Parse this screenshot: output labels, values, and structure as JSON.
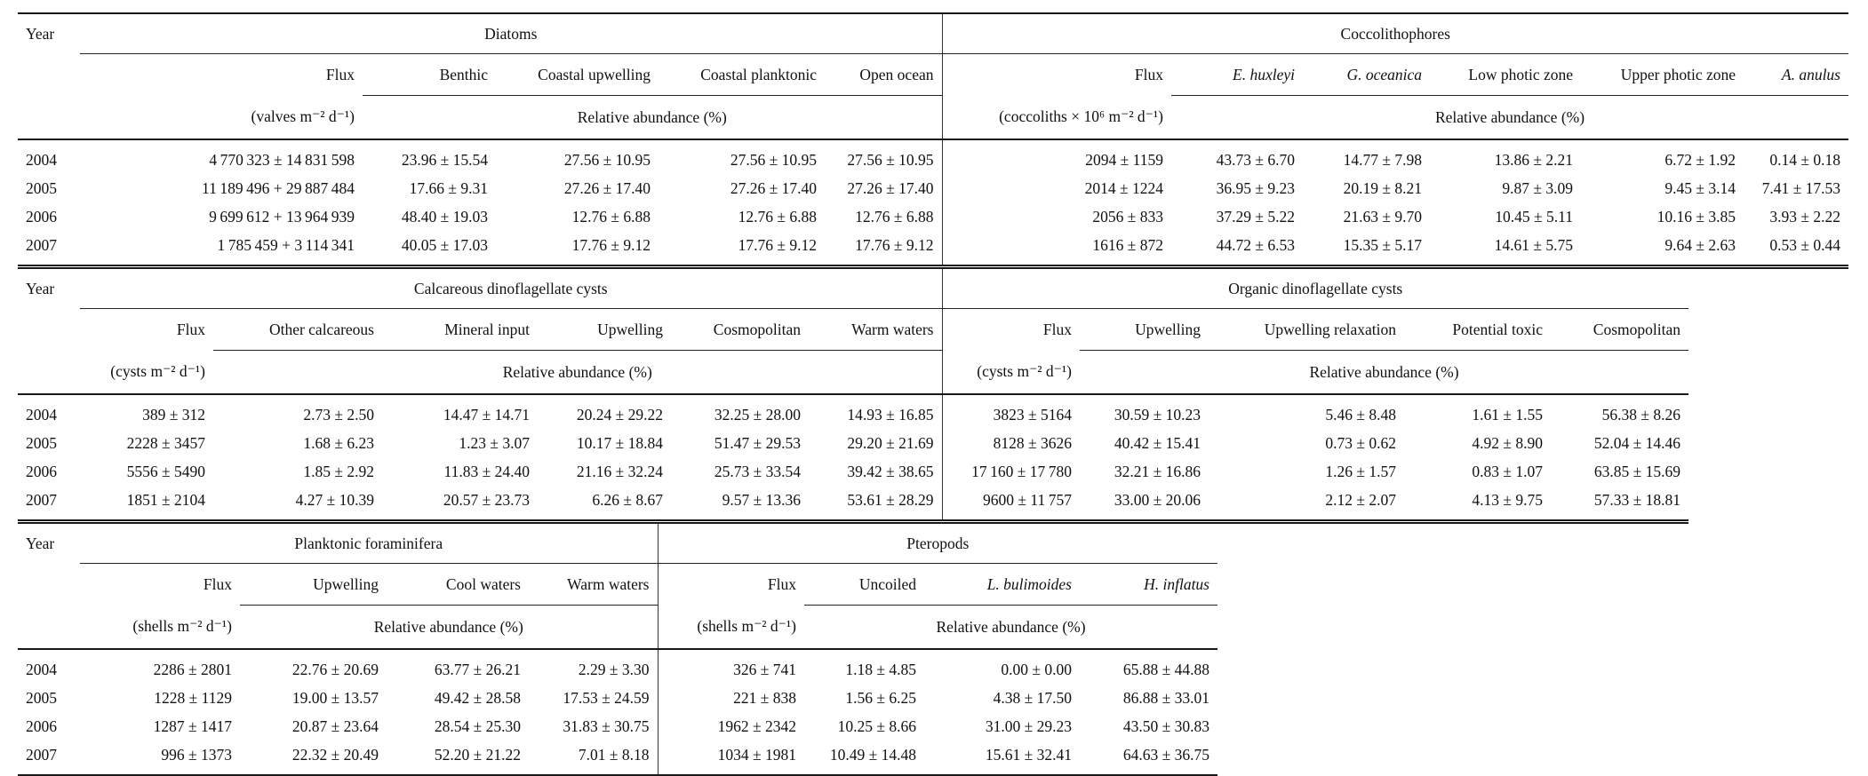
{
  "page": {
    "background": "#ffffff",
    "text_color": "#111111",
    "rule_color": "#181818"
  },
  "tables": [
    {
      "name": "diatoms-coccolithophores",
      "year_header": "Year",
      "sections": [
        {
          "title": "Diatoms",
          "flux_header": "Flux",
          "flux_unit": "(valves m⁻² d⁻¹)",
          "abundance_header": "Relative abundance (%)",
          "species": [
            "Benthic",
            "Coastal upwelling",
            "Coastal planktonic",
            "Open ocean"
          ],
          "species_italic": [
            false,
            false,
            false,
            false
          ]
        },
        {
          "title": "Coccolithophores",
          "flux_header": "Flux",
          "flux_unit": "(coccoliths × 10⁶ m⁻² d⁻¹)",
          "abundance_header": "Relative abundance (%)",
          "species": [
            "E. huxleyi",
            "G. oceanica",
            "Low photic zone",
            "Upper photic zone",
            "A. anulus"
          ],
          "species_italic": [
            true,
            true,
            false,
            false,
            true
          ]
        }
      ],
      "rows": [
        {
          "year": "2004",
          "cells": [
            "4 770 323 ± 14 831 598",
            "23.96 ± 15.54",
            "27.56 ± 10.95",
            "27.56 ± 10.95",
            "27.56 ± 10.95",
            "2094 ± 1159",
            "43.73 ± 6.70",
            "14.77 ± 7.98",
            "13.86 ± 2.21",
            "6.72 ± 1.92",
            "0.14 ± 0.18"
          ]
        },
        {
          "year": "2005",
          "cells": [
            "11 189 496 + 29 887 484",
            "17.66 ± 9.31",
            "27.26 ± 17.40",
            "27.26 ± 17.40",
            "27.26 ± 17.40",
            "2014 ± 1224",
            "36.95 ± 9.23",
            "20.19 ± 8.21",
            "9.87 ± 3.09",
            "9.45 ± 3.14",
            "7.41 ± 17.53"
          ]
        },
        {
          "year": "2006",
          "cells": [
            "9 699 612 + 13 964 939",
            "48.40 ± 19.03",
            "12.76 ± 6.88",
            "12.76 ± 6.88",
            "12.76 ± 6.88",
            "2056 ± 833",
            "37.29 ± 5.22",
            "21.63 ± 9.70",
            "10.45 ± 5.11",
            "10.16 ± 3.85",
            "3.93 ± 2.22"
          ]
        },
        {
          "year": "2007",
          "cells": [
            "1 785 459 + 3 114 341",
            "40.05 ± 17.03",
            "17.76 ± 9.12",
            "17.76 ± 9.12",
            "17.76 ± 9.12",
            "1616 ± 872",
            "44.72 ± 6.53",
            "15.35 ± 5.17",
            "14.61 ± 5.75",
            "9.64 ± 2.63",
            "0.53 ± 0.44"
          ]
        }
      ]
    },
    {
      "name": "dinoflagellate-cysts",
      "year_header": "Year",
      "sections": [
        {
          "title": "Calcareous dinoflagellate cysts",
          "flux_header": "Flux",
          "flux_unit": "(cysts m⁻² d⁻¹)",
          "abundance_header": "Relative abundance (%)",
          "species": [
            "Other calcareous",
            "Mineral input",
            "Upwelling",
            "Cosmopolitan",
            "Warm waters"
          ],
          "species_italic": [
            false,
            false,
            false,
            false,
            false
          ]
        },
        {
          "title": "Organic dinoflagellate cysts",
          "flux_header": "Flux",
          "flux_unit": "(cysts m⁻² d⁻¹)",
          "abundance_header": "Relative abundance (%)",
          "species": [
            "Upwelling",
            "Upwelling relaxation",
            "Potential toxic",
            "Cosmopolitan"
          ],
          "species_italic": [
            false,
            false,
            false,
            false
          ]
        }
      ],
      "rows": [
        {
          "year": "2004",
          "cells": [
            "389 ± 312",
            "2.73 ± 2.50",
            "14.47 ± 14.71",
            "20.24 ± 29.22",
            "32.25 ± 28.00",
            "14.93 ± 16.85",
            "3823 ± 5164",
            "30.59 ± 10.23",
            "5.46 ± 8.48",
            "1.61 ± 1.55",
            "56.38 ± 8.26"
          ]
        },
        {
          "year": "2005",
          "cells": [
            "2228 ± 3457",
            "1.68 ± 6.23",
            "1.23 ± 3.07",
            "10.17 ± 18.84",
            "51.47 ± 29.53",
            "29.20 ± 21.69",
            "8128 ± 3626",
            "40.42 ± 15.41",
            "0.73 ± 0.62",
            "4.92 ± 8.90",
            "52.04 ± 14.46"
          ]
        },
        {
          "year": "2006",
          "cells": [
            "5556 ± 5490",
            "1.85 ± 2.92",
            "11.83 ± 24.40",
            "21.16 ± 32.24",
            "25.73 ± 33.54",
            "39.42 ± 38.65",
            "17 160 ± 17 780",
            "32.21 ± 16.86",
            "1.26 ± 1.57",
            "0.83 ± 1.07",
            "63.85 ± 15.69"
          ]
        },
        {
          "year": "2007",
          "cells": [
            "1851 ± 2104",
            "4.27 ± 10.39",
            "20.57 ± 23.73",
            "6.26 ± 8.67",
            "9.57 ± 13.36",
            "53.61 ± 28.29",
            "9600 ± 11 757",
            "33.00 ± 20.06",
            "2.12 ± 2.07",
            "4.13 ± 9.75",
            "57.33 ± 18.81"
          ]
        }
      ]
    },
    {
      "name": "foraminifera-pteropods",
      "year_header": "Year",
      "sections": [
        {
          "title": "Planktonic foraminifera",
          "flux_header": "Flux",
          "flux_unit": "(shells m⁻² d⁻¹)",
          "abundance_header": "Relative abundance (%)",
          "species": [
            "Upwelling",
            "Cool waters",
            "Warm waters"
          ],
          "species_italic": [
            false,
            false,
            false
          ]
        },
        {
          "title": "Pteropods",
          "flux_header": "Flux",
          "flux_unit": "(shells m⁻² d⁻¹)",
          "abundance_header": "Relative abundance (%)",
          "species": [
            "Uncoiled",
            "L. bulimoides",
            "H. inflatus"
          ],
          "species_italic": [
            false,
            true,
            true
          ]
        }
      ],
      "rows": [
        {
          "year": "2004",
          "cells": [
            "2286 ± 2801",
            "22.76 ± 20.69",
            "63.77 ± 26.21",
            "2.29 ± 3.30",
            "326 ± 741",
            "1.18 ± 4.85",
            "0.00 ± 0.00",
            "65.88 ± 44.88"
          ]
        },
        {
          "year": "2005",
          "cells": [
            "1228 ± 1129",
            "19.00 ± 13.57",
            "49.42 ± 28.58",
            "17.53 ± 24.59",
            "221 ± 838",
            "1.56 ± 6.25",
            "4.38 ± 17.50",
            "86.88 ± 33.01"
          ]
        },
        {
          "year": "2006",
          "cells": [
            "1287 ± 1417",
            "20.87 ± 23.64",
            "28.54 ± 25.30",
            "31.83 ± 30.75",
            "1962 ± 2342",
            "10.25 ± 8.66",
            "31.00 ± 29.23",
            "43.50 ± 30.83"
          ]
        },
        {
          "year": "2007",
          "cells": [
            "996 ± 1373",
            "22.32 ± 20.49",
            "52.20 ± 21.22",
            "7.01 ± 8.18",
            "1034 ± 1981",
            "10.49 ± 14.48",
            "15.61 ± 32.41",
            "64.63 ± 36.75"
          ]
        }
      ]
    }
  ]
}
